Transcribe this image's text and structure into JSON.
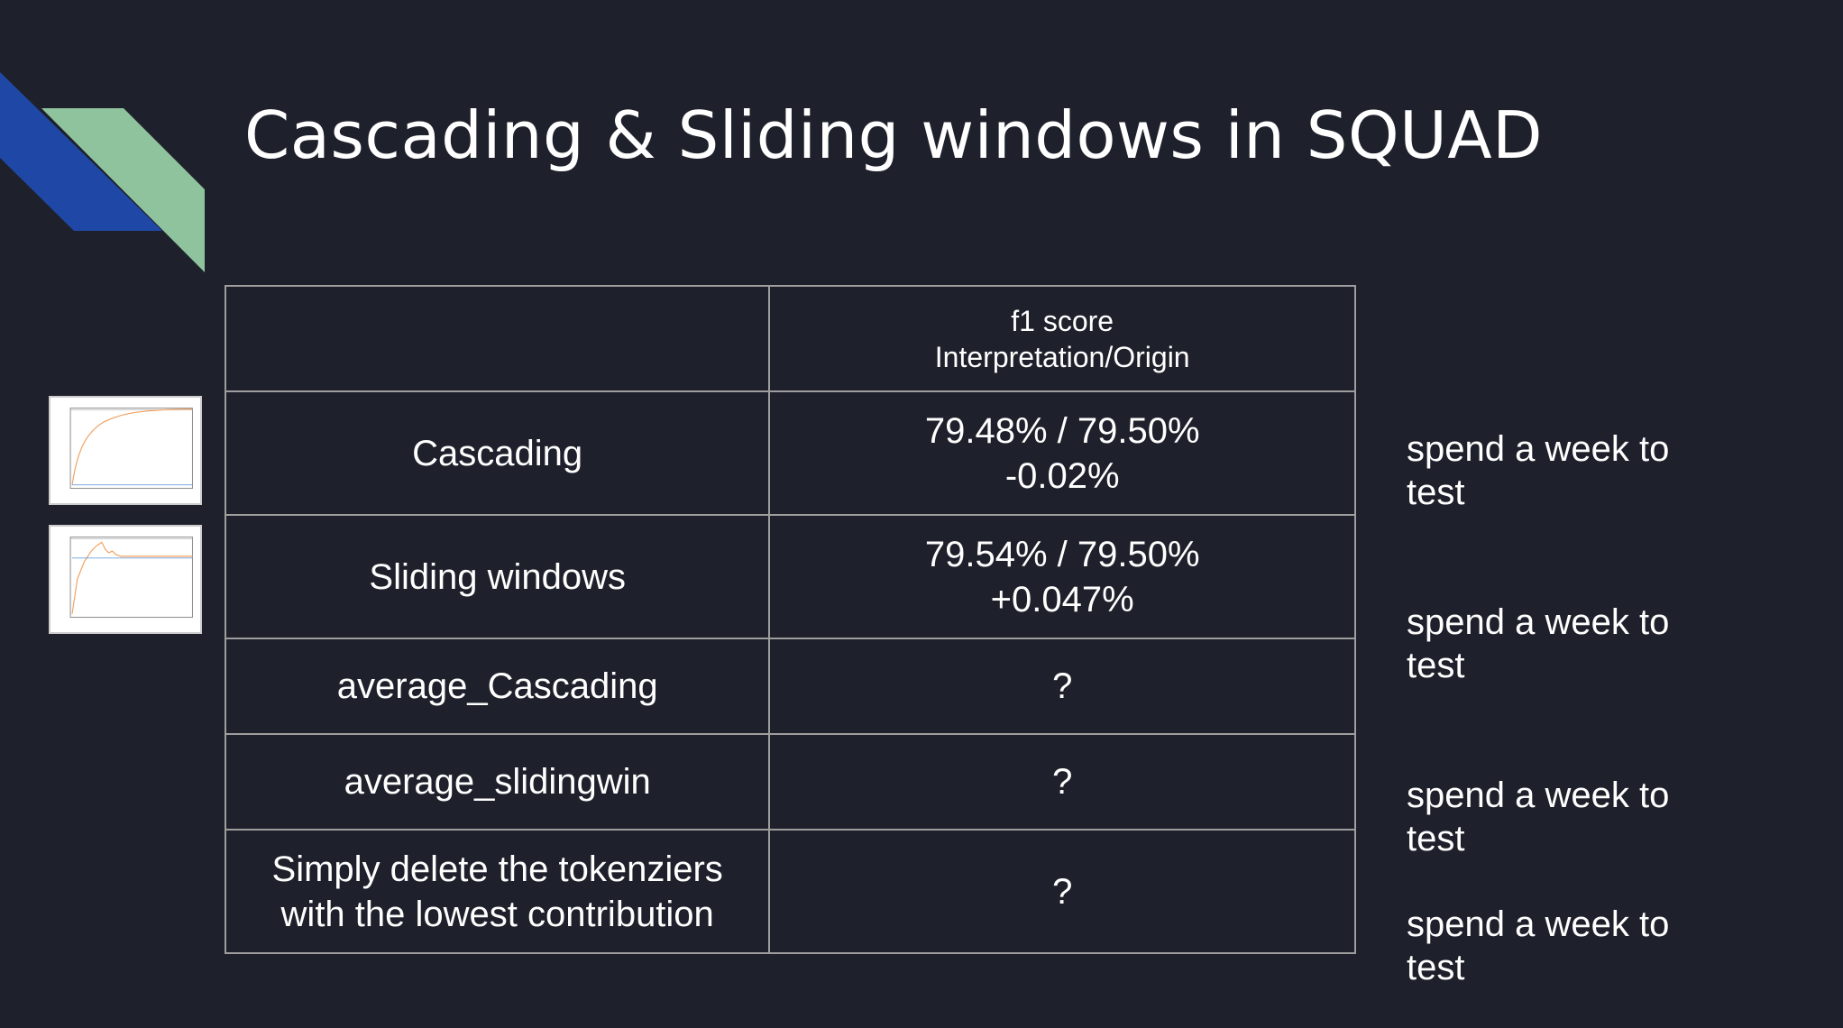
{
  "slide": {
    "title": "Cascading & Sliding windows in SQUAD"
  },
  "colors": {
    "background": "#1e212b",
    "accent_blue": "#1f48a6",
    "accent_green": "#8fc39e"
  },
  "table": {
    "header": {
      "col1": "",
      "col2_line1": "f1 score",
      "col2_line2": "Interpretation/Origin"
    },
    "rows": [
      {
        "label": "Cascading",
        "value_line1": "79.48% / 79.50%",
        "value_line2": "-0.02%"
      },
      {
        "label": "Sliding windows",
        "value_line1": "79.54% / 79.50%",
        "value_line2": "+0.047%"
      },
      {
        "label": "average_Cascading",
        "value_line1": "?",
        "value_line2": ""
      },
      {
        "label": "average_slidingwin",
        "value_line1": "?",
        "value_line2": ""
      },
      {
        "label_line1": "Simply delete the tokenziers",
        "label_line2": "with the lowest contribution",
        "value_line1": "?",
        "value_line2": ""
      }
    ]
  },
  "side_notes": [
    {
      "line1": "spend a week to",
      "line2": "test"
    },
    {
      "line1": "spend a week to",
      "line2": "test"
    },
    {
      "line1": "spend a week to",
      "line2": "test"
    },
    {
      "line1": "spend a week to",
      "line2": "test"
    }
  ],
  "thumbnails": [
    {
      "icon": "line-chart-thumbnail"
    },
    {
      "icon": "line-chart-thumbnail"
    }
  ]
}
